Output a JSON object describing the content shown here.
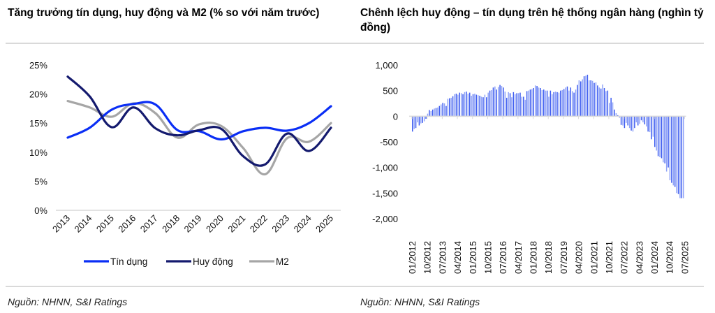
{
  "titles": {
    "left": "Tăng trưởng tín dụng, huy động và M2 (% so với năm trước)",
    "right": "Chênh lệch huy động – tín dụng trên hệ thống ngân hàng (nghìn tỷ đồng)"
  },
  "sources": {
    "left": "Nguồn: NHNN, S&I Ratings",
    "right": "Nguồn: NHNN, S&I Ratings"
  },
  "chart_data": [
    {
      "type": "line",
      "title": "Tăng trưởng tín dụng, huy động và M2 (% so với năm trước)",
      "xlabel": "",
      "ylabel": "",
      "x": [
        "2013",
        "2014",
        "2015",
        "2016",
        "2017",
        "2018",
        "2019",
        "2020",
        "2021",
        "2022",
        "2023",
        "2024",
        "2025"
      ],
      "ylim": [
        0,
        25
      ],
      "yticks": [
        "0%",
        "5%",
        "10%",
        "15%",
        "20%",
        "25%"
      ],
      "ytick_values": [
        0,
        5,
        10,
        15,
        20,
        25
      ],
      "grid": false,
      "smooth": true,
      "legend": "bottom",
      "series": [
        {
          "name": "Tín dụng",
          "color": "#0a2ef5",
          "values": [
            12.5,
            14.2,
            17.3,
            18.3,
            18.2,
            13.8,
            13.6,
            12.2,
            13.6,
            14.2,
            13.7,
            15.0,
            17.9
          ]
        },
        {
          "name": "Huy động",
          "color": "#141a6e",
          "values": [
            23.0,
            19.6,
            14.3,
            17.7,
            14.1,
            12.9,
            13.8,
            14.0,
            9.3,
            7.9,
            13.2,
            10.2,
            14.2
          ]
        },
        {
          "name": "M2",
          "color": "#a6a6a6",
          "values": [
            18.8,
            17.7,
            16.1,
            18.4,
            16.7,
            12.5,
            14.8,
            14.5,
            10.7,
            6.2,
            12.4,
            11.8,
            15.0
          ]
        }
      ]
    },
    {
      "type": "bar",
      "title": "Chênh lệch huy động – tín dụng trên hệ thống ngân hàng (nghìn tỷ đồng)",
      "xlabel": "",
      "ylabel": "",
      "ylim": [
        -2000,
        1000
      ],
      "yticks": [
        "1,000",
        "500",
        "0",
        "-500",
        "-1,000",
        "-1,500",
        "-2,000"
      ],
      "ytick_values": [
        1000,
        500,
        0,
        -500,
        -1000,
        -1500,
        -2000
      ],
      "grid": false,
      "color": "#3d5cf0",
      "start_month": "01/2012",
      "xtick_labels": [
        "01/2012",
        "10/2012",
        "07/2013",
        "04/2014",
        "01/2015",
        "10/2015",
        "07/2016",
        "04/2017",
        "01/2018",
        "10/2018",
        "07/2019",
        "04/2020",
        "01/2021",
        "10/2021",
        "07/2022",
        "04/2023",
        "01/2024",
        "10/2024",
        "07/2025"
      ],
      "values": [
        -300,
        -250,
        -230,
        -120,
        -180,
        -140,
        -130,
        -100,
        -50,
        50,
        120,
        100,
        130,
        150,
        160,
        170,
        200,
        230,
        260,
        250,
        200,
        340,
        350,
        360,
        390,
        430,
        440,
        420,
        460,
        450,
        430,
        470,
        480,
        440,
        460,
        400,
        430,
        440,
        420,
        410,
        400,
        380,
        370,
        420,
        370,
        460,
        500,
        510,
        560,
        580,
        520,
        570,
        610,
        590,
        560,
        480,
        360,
        470,
        450,
        370,
        470,
        430,
        450,
        450,
        460,
        380,
        380,
        320,
        490,
        500,
        520,
        530,
        550,
        600,
        590,
        560,
        550,
        510,
        520,
        500,
        500,
        380,
        500,
        430,
        470,
        480,
        470,
        460,
        500,
        510,
        530,
        560,
        580,
        500,
        560,
        490,
        460,
        520,
        610,
        700,
        680,
        720,
        780,
        790,
        810,
        700,
        700,
        690,
        650,
        660,
        600,
        560,
        540,
        620,
        550,
        490,
        500,
        260,
        360,
        270,
        130,
        60,
        20,
        -30,
        -170,
        -180,
        -230,
        -130,
        -180,
        -230,
        -280,
        -300,
        -230,
        -120,
        -180,
        -150,
        -80,
        -120,
        -160,
        -200,
        -300,
        -310,
        -450,
        -400,
        -600,
        -670,
        -780,
        -800,
        -820,
        -900,
        -920,
        -1080,
        -1000,
        -1250,
        -1300,
        -1350,
        -1380,
        -1500,
        -1520,
        -1600,
        -1600,
        -1600
      ]
    }
  ]
}
